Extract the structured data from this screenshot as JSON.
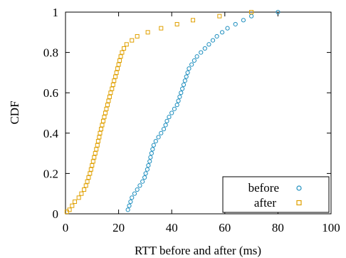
{
  "chart_data": {
    "type": "scatter",
    "title": "",
    "xlabel": "RTT before and after (ms)",
    "ylabel": "CDF",
    "xlim": [
      0,
      100
    ],
    "ylim": [
      0,
      1
    ],
    "x_ticks": [
      "0",
      "20",
      "40",
      "60",
      "80",
      "100"
    ],
    "y_ticks": [
      "0",
      "0.2",
      "0.4",
      "0.6",
      "0.8",
      "1"
    ],
    "grid": false,
    "legend_position": "bottom-right",
    "series": [
      {
        "name": "before",
        "marker": "circle",
        "color": "#1f8fbf",
        "points": [
          [
            23.5,
            0.02
          ],
          [
            24.0,
            0.04
          ],
          [
            24.5,
            0.06
          ],
          [
            25.0,
            0.08
          ],
          [
            26.0,
            0.1
          ],
          [
            27.0,
            0.12
          ],
          [
            28.0,
            0.14
          ],
          [
            29.0,
            0.16
          ],
          [
            29.8,
            0.18
          ],
          [
            30.2,
            0.2
          ],
          [
            30.8,
            0.22
          ],
          [
            31.2,
            0.24
          ],
          [
            31.7,
            0.26
          ],
          [
            32.0,
            0.28
          ],
          [
            32.4,
            0.3
          ],
          [
            32.8,
            0.32
          ],
          [
            33.2,
            0.34
          ],
          [
            34.0,
            0.36
          ],
          [
            35.0,
            0.38
          ],
          [
            36.0,
            0.4
          ],
          [
            37.0,
            0.42
          ],
          [
            37.7,
            0.44
          ],
          [
            38.2,
            0.46
          ],
          [
            39.0,
            0.48
          ],
          [
            40.0,
            0.5
          ],
          [
            41.0,
            0.52
          ],
          [
            42.0,
            0.54
          ],
          [
            42.5,
            0.56
          ],
          [
            43.0,
            0.58
          ],
          [
            43.5,
            0.6
          ],
          [
            44.0,
            0.62
          ],
          [
            44.5,
            0.64
          ],
          [
            45.0,
            0.66
          ],
          [
            45.5,
            0.68
          ],
          [
            46.0,
            0.7
          ],
          [
            46.5,
            0.72
          ],
          [
            47.5,
            0.74
          ],
          [
            48.5,
            0.76
          ],
          [
            49.5,
            0.78
          ],
          [
            51.0,
            0.8
          ],
          [
            52.5,
            0.82
          ],
          [
            54.0,
            0.84
          ],
          [
            55.5,
            0.86
          ],
          [
            57.0,
            0.88
          ],
          [
            59.0,
            0.9
          ],
          [
            61.0,
            0.92
          ],
          [
            64.0,
            0.94
          ],
          [
            67.0,
            0.96
          ],
          [
            70.0,
            0.98
          ],
          [
            80.0,
            1.0
          ]
        ]
      },
      {
        "name": "after",
        "marker": "square",
        "color": "#e0a000",
        "points": [
          [
            0.5,
            0.01
          ],
          [
            1.5,
            0.02
          ],
          [
            2.5,
            0.04
          ],
          [
            3.5,
            0.06
          ],
          [
            5.0,
            0.08
          ],
          [
            6.0,
            0.1
          ],
          [
            7.0,
            0.12
          ],
          [
            7.7,
            0.14
          ],
          [
            8.2,
            0.16
          ],
          [
            8.7,
            0.18
          ],
          [
            9.2,
            0.2
          ],
          [
            9.6,
            0.22
          ],
          [
            10.0,
            0.24
          ],
          [
            10.4,
            0.26
          ],
          [
            10.8,
            0.28
          ],
          [
            11.2,
            0.3
          ],
          [
            11.6,
            0.32
          ],
          [
            12.0,
            0.34
          ],
          [
            12.3,
            0.36
          ],
          [
            12.7,
            0.38
          ],
          [
            13.0,
            0.4
          ],
          [
            13.4,
            0.42
          ],
          [
            13.8,
            0.44
          ],
          [
            14.2,
            0.46
          ],
          [
            14.6,
            0.48
          ],
          [
            15.0,
            0.5
          ],
          [
            15.4,
            0.52
          ],
          [
            15.8,
            0.54
          ],
          [
            16.2,
            0.56
          ],
          [
            16.6,
            0.58
          ],
          [
            17.0,
            0.6
          ],
          [
            17.5,
            0.62
          ],
          [
            17.9,
            0.64
          ],
          [
            18.3,
            0.66
          ],
          [
            18.8,
            0.68
          ],
          [
            19.2,
            0.7
          ],
          [
            19.6,
            0.72
          ],
          [
            20.0,
            0.74
          ],
          [
            20.4,
            0.76
          ],
          [
            20.8,
            0.78
          ],
          [
            21.3,
            0.8
          ],
          [
            22.0,
            0.82
          ],
          [
            23.0,
            0.84
          ],
          [
            25.0,
            0.86
          ],
          [
            27.0,
            0.88
          ],
          [
            31.0,
            0.9
          ],
          [
            36.0,
            0.92
          ],
          [
            42.0,
            0.94
          ],
          [
            48.0,
            0.96
          ],
          [
            58.0,
            0.98
          ],
          [
            70.0,
            1.0
          ]
        ]
      }
    ]
  }
}
